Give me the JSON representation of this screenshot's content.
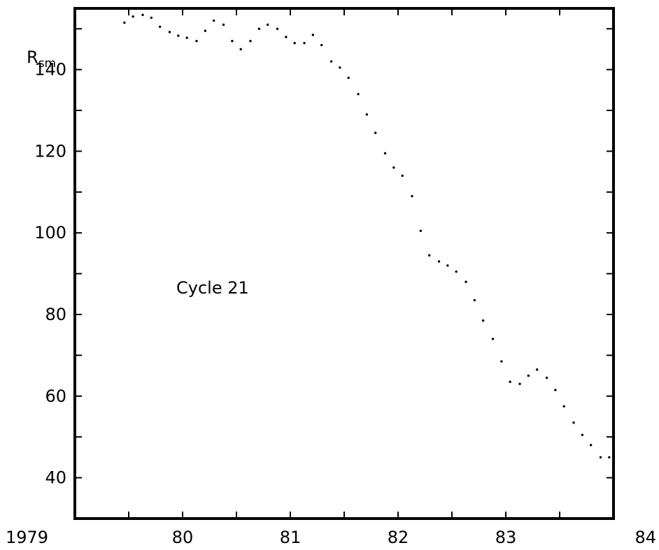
{
  "chart_data": {
    "type": "scatter",
    "title": "",
    "xlabel": "",
    "ylabel_main": "R",
    "ylabel_sub": "sm",
    "annotation": "Cycle 21",
    "xlim": [
      1979.0,
      1984.0
    ],
    "ylim": [
      30,
      155
    ],
    "x_ticks": [
      {
        "value": 1979,
        "label": "1979"
      },
      {
        "value": 1980,
        "label": "80"
      },
      {
        "value": 1981,
        "label": "81"
      },
      {
        "value": 1982,
        "label": "82"
      },
      {
        "value": 1983,
        "label": "83"
      },
      {
        "value": 1984,
        "label": "84"
      }
    ],
    "y_ticks": [
      {
        "value": 40,
        "label": "40"
      },
      {
        "value": 60,
        "label": "60"
      },
      {
        "value": 80,
        "label": "80"
      },
      {
        "value": 100,
        "label": "100"
      },
      {
        "value": 120,
        "label": "120"
      },
      {
        "value": 140,
        "label": "140"
      }
    ],
    "y_minor_ticks": [
      50,
      70,
      90,
      110,
      130,
      150
    ],
    "x_minor_ticks": [
      1979.5,
      1980.5,
      1981.5,
      1982.5,
      1983.5
    ],
    "series": [
      {
        "x": [
          1979.46,
          1979.54,
          1979.63,
          1979.71,
          1979.79,
          1979.88,
          1979.96,
          1980.04,
          1980.13,
          1980.21,
          1980.29,
          1980.38,
          1980.46,
          1980.54,
          1980.63,
          1980.71,
          1980.79,
          1980.88,
          1980.96,
          1981.04,
          1981.13,
          1981.21,
          1981.29,
          1981.38,
          1981.46,
          1981.54,
          1981.63,
          1981.71,
          1981.79,
          1981.88,
          1981.96,
          1982.04,
          1982.13,
          1982.21,
          1982.29,
          1982.38,
          1982.46,
          1982.54,
          1982.63,
          1982.71,
          1982.79,
          1982.88,
          1982.96,
          1983.04,
          1983.13,
          1983.21,
          1983.29,
          1983.38,
          1983.46,
          1983.54,
          1983.63,
          1983.71,
          1983.79,
          1983.88,
          1983.96
        ],
        "y": [
          151.5,
          153.0,
          153.4,
          152.7,
          150.5,
          149.2,
          148.3,
          147.8,
          147.0,
          149.5,
          152.0,
          151.0,
          147.0,
          145.0,
          147.0,
          150.0,
          151.0,
          150.0,
          148.0,
          146.5,
          146.5,
          148.5,
          146.0,
          142.0,
          140.5,
          138.0,
          134.0,
          129.0,
          124.5,
          119.5,
          116.0,
          114.0,
          109.0,
          100.5,
          94.5,
          93.0,
          92.0,
          90.5,
          88.0,
          83.5,
          78.5,
          74.0,
          68.5,
          63.5,
          63.0,
          65.0,
          66.5,
          64.5,
          61.5,
          57.5,
          53.5,
          50.5,
          48.0,
          45.0,
          45.0
        ]
      }
    ]
  }
}
